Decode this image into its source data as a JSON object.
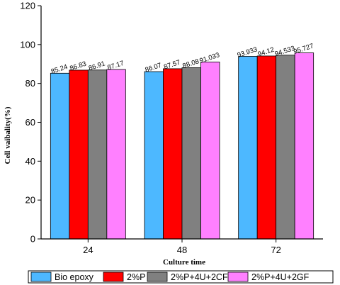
{
  "chart_data": {
    "type": "bar",
    "title": "",
    "xlabel": "Culture time",
    "ylabel": "Cell vaibality(%)",
    "ylim": [
      0,
      120
    ],
    "yticks": [
      0,
      20,
      40,
      60,
      80,
      100,
      120
    ],
    "grid": false,
    "legend_position": "bottom",
    "categories": [
      "24",
      "48",
      "72"
    ],
    "series": [
      {
        "name": "Bio epoxy",
        "color": "#4db8ff",
        "values": [
          85.24,
          86.07,
          93.933
        ],
        "labels": [
          "85.24",
          "86.07",
          "93.933"
        ]
      },
      {
        "name": "2%P",
        "color": "#ff0000",
        "values": [
          86.83,
          87.57,
          94.12
        ],
        "labels": [
          "86.83",
          "87.57",
          "94.12"
        ]
      },
      {
        "name": "2%P+4U+2CF",
        "color": "#808080",
        "values": [
          86.91,
          88.08,
          94.533
        ],
        "labels": [
          "86.91",
          "88.08",
          "94.533"
        ]
      },
      {
        "name": "2%P+4U+2GF",
        "color": "#ff80ff",
        "values": [
          87.17,
          91.033,
          95.727
        ],
        "labels": [
          "87.17",
          "91.033",
          "95.727"
        ]
      }
    ]
  }
}
